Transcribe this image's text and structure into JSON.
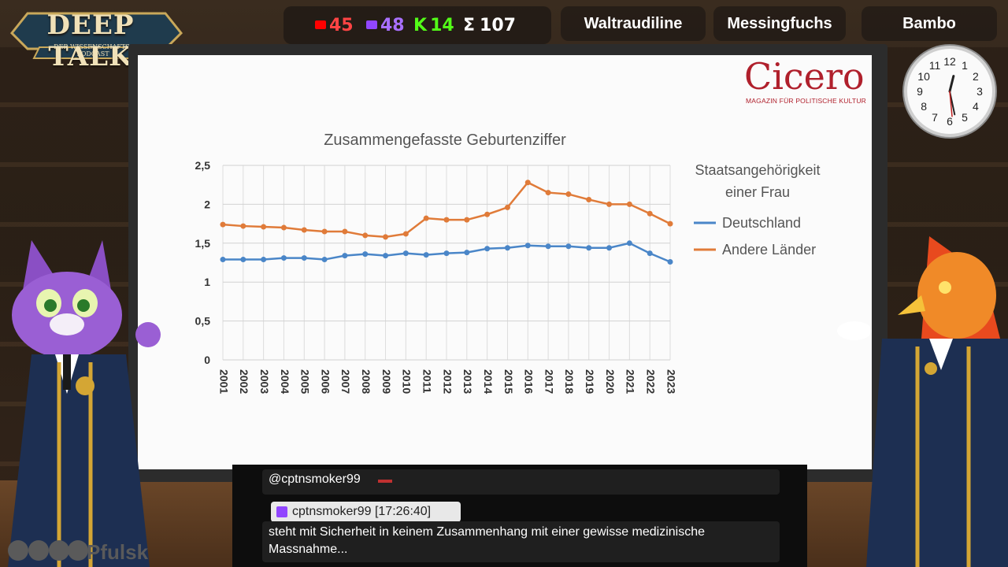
{
  "logo": {
    "title": "DEEP TALK",
    "subtitle": "DER WISSENSCHAFTS-PODCAST"
  },
  "stats": [
    {
      "platform": "youtube",
      "icon": "youtube-icon",
      "value": "45",
      "color": "#ff4444"
    },
    {
      "platform": "twitch",
      "icon": "twitch-icon",
      "value": "48",
      "color": "#a970ff"
    },
    {
      "platform": "kick",
      "icon": "kick-icon",
      "value": "14",
      "color": "#53fc18"
    },
    {
      "platform": "total",
      "icon": "sigma-icon",
      "value": "107",
      "color": "#ffffff"
    }
  ],
  "participants": [
    "Waltraudiline",
    "Messingfuchs",
    "Bambo"
  ],
  "brand": {
    "name": "Cicero",
    "tagline": "MAGAZIN FÜR POLITISCHE KULTUR"
  },
  "clock": {
    "time": "12:28"
  },
  "chart_data": {
    "type": "line",
    "title": "Zusammengefasste Geburtenziffer",
    "legend_title": "Staatsangehörigkeit einer Frau",
    "legend_title_lines": [
      "Staatsangehörigkeit",
      "einer Frau"
    ],
    "legend_position": "right",
    "ylim": [
      0,
      2.5
    ],
    "yticks": [
      "0",
      "0,5",
      "1",
      "1,5",
      "2",
      "2,5"
    ],
    "ytick_values": [
      0,
      0.5,
      1,
      1.5,
      2,
      2.5
    ],
    "grid": true,
    "x": [
      "2001",
      "2002",
      "2003",
      "2004",
      "2005",
      "2006",
      "2007",
      "2008",
      "2009",
      "2010",
      "2011",
      "2012",
      "2013",
      "2014",
      "2015",
      "2016",
      "2017",
      "2018",
      "2019",
      "2020",
      "2021",
      "2022",
      "2023"
    ],
    "series": [
      {
        "name": "Deutschland",
        "color": "#4a86c8",
        "values": [
          1.29,
          1.29,
          1.29,
          1.31,
          1.31,
          1.29,
          1.34,
          1.36,
          1.34,
          1.37,
          1.35,
          1.37,
          1.38,
          1.43,
          1.44,
          1.47,
          1.46,
          1.46,
          1.44,
          1.44,
          1.5,
          1.37,
          1.26
        ]
      },
      {
        "name": "Andere Länder",
        "color": "#e07b39",
        "values": [
          1.74,
          1.72,
          1.71,
          1.7,
          1.67,
          1.65,
          1.65,
          1.6,
          1.58,
          1.62,
          1.82,
          1.8,
          1.8,
          1.87,
          1.96,
          2.28,
          2.15,
          2.13,
          2.06,
          2.0,
          2.0,
          1.88,
          1.75
        ]
      }
    ]
  },
  "chat": {
    "reply_to": "@cptnsmoker99",
    "author": "cptnsmoker99",
    "timestamp": "[17:26:40]",
    "message": "steht mit Sicherheit in keinem Zusammenhang mit einer gewisse medizinische Massnahme..."
  },
  "footer": {
    "handle": "Pfulsk"
  }
}
